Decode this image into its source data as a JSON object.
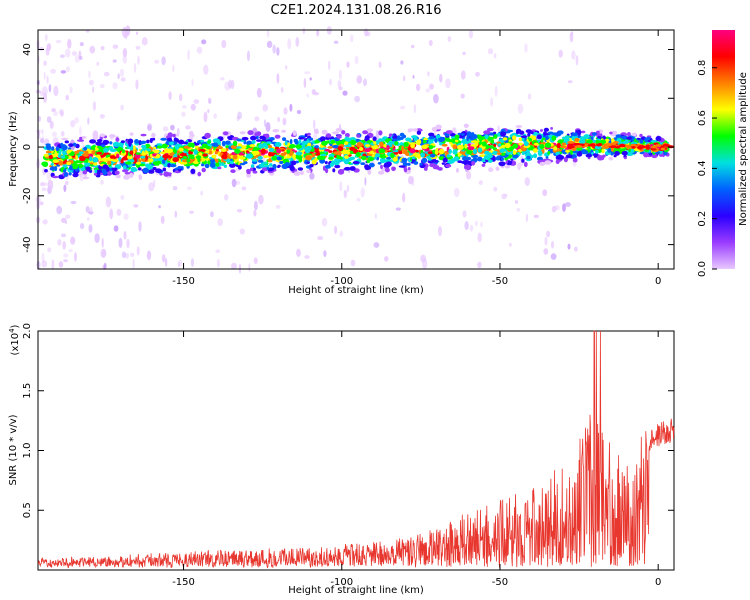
{
  "title": "C2E1.2024.131.08.26.R16",
  "colors": {
    "snr_line": "#e8372f",
    "axes": "#000000"
  },
  "chart_data": [
    {
      "type": "heatmap",
      "xlabel": "Height of straight line (km)",
      "ylabel": "Frequency (Hz)",
      "xlim": [
        -196,
        5
      ],
      "ylim": [
        -50,
        48
      ],
      "xticks": [
        -150,
        -100,
        -50,
        0
      ],
      "yticks": [
        -40,
        -20,
        0,
        20,
        40
      ],
      "xtick_labels": [
        "-150",
        "-100",
        "-50",
        "0"
      ],
      "ytick_labels": [
        "-40",
        "-20",
        "0",
        "20",
        "40"
      ],
      "colormap": [
        "#ffffff",
        "#e8c8ff",
        "#9a3cff",
        "#2b00ff",
        "#0060ff",
        "#00e0e0",
        "#00ff00",
        "#ffff00",
        "#ff8000",
        "#ff0000",
        "#ff0080"
      ],
      "trend": {
        "x": [
          -196,
          -150,
          -100,
          -50,
          -25,
          0
        ],
        "y": [
          -5,
          -3,
          -2,
          0,
          1,
          0
        ]
      },
      "colorbar": {
        "label": "Normalized spectral amplitude",
        "range": [
          0,
          0.95
        ],
        "ticks": [
          0.0,
          0.2,
          0.4,
          0.6,
          0.8
        ],
        "tick_labels": [
          "0.0",
          "0.2",
          "0.4",
          "0.6",
          "0.8"
        ]
      }
    },
    {
      "type": "line",
      "xlabel": "Height of straight line (km)",
      "ylabel": "SNR (10 * v/v)",
      "scale_label": "(x10",
      "scale_exponent": "4",
      "xlim": [
        -196,
        5
      ],
      "ylim": [
        0,
        20000
      ],
      "xticks": [
        -150,
        -100,
        -50,
        0
      ],
      "yticks": [
        5000,
        10000,
        15000,
        20000
      ],
      "xtick_labels": [
        "-150",
        "-100",
        "-50",
        "0"
      ],
      "ytick_labels": [
        "0.5",
        "1.0",
        "1.5",
        "2.0"
      ],
      "series": [
        {
          "envelope_x": [
            -196,
            -170,
            -150,
            -130,
            -110,
            -100,
            -90,
            -80,
            -70,
            -60,
            -50,
            -40,
            -30,
            -25,
            -20,
            -15,
            -10,
            -5,
            0,
            5
          ],
          "envelope_y": [
            600,
            900,
            1200,
            1500,
            1600,
            1800,
            2000,
            2500,
            3200,
            4500,
            5500,
            6500,
            8500,
            11000,
            13500,
            11000,
            9000,
            11500,
            12000,
            12500
          ]
        }
      ]
    }
  ]
}
